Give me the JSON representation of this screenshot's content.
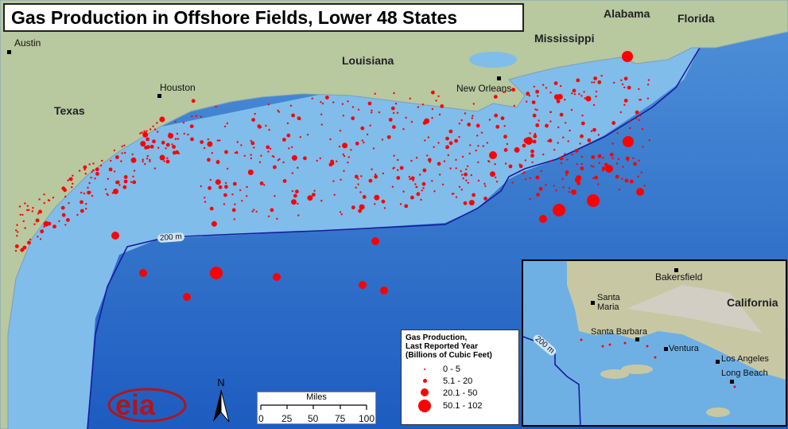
{
  "title": "Gas Production in Offshore Fields, Lower 48 States",
  "states": [
    "Texas",
    "Louisiana",
    "Mississippi",
    "Alabama",
    "Florida"
  ],
  "cities": [
    "Austin",
    "Houston",
    "New Orleans"
  ],
  "contour_label": "200 m",
  "legend": {
    "title_lines": [
      "Gas Production,",
      "Last Reported Year",
      "(Billions of Cubic Feet)"
    ],
    "classes": [
      "0 - 5",
      "5.1 - 20",
      "20.1 - 50",
      "50.1 - 102"
    ]
  },
  "scale_bar": {
    "unit": "Miles",
    "ticks": [
      "0",
      "25",
      "50",
      "75",
      "100"
    ]
  },
  "north_arrow": "N",
  "logo": "eia",
  "inset": {
    "state": "California",
    "cities": [
      "Bakersfield",
      "Santa Maria",
      "Santa Barbara",
      "Ventura",
      "Los Angeles",
      "Long Beach"
    ],
    "contour_label": "200 m"
  },
  "colors": {
    "production_dot": "#ff0000",
    "land": "#b9c9a0",
    "shelf": "#7ab8e8",
    "deep_water": "#1e5fc0",
    "contour": "#1a1aa0"
  }
}
